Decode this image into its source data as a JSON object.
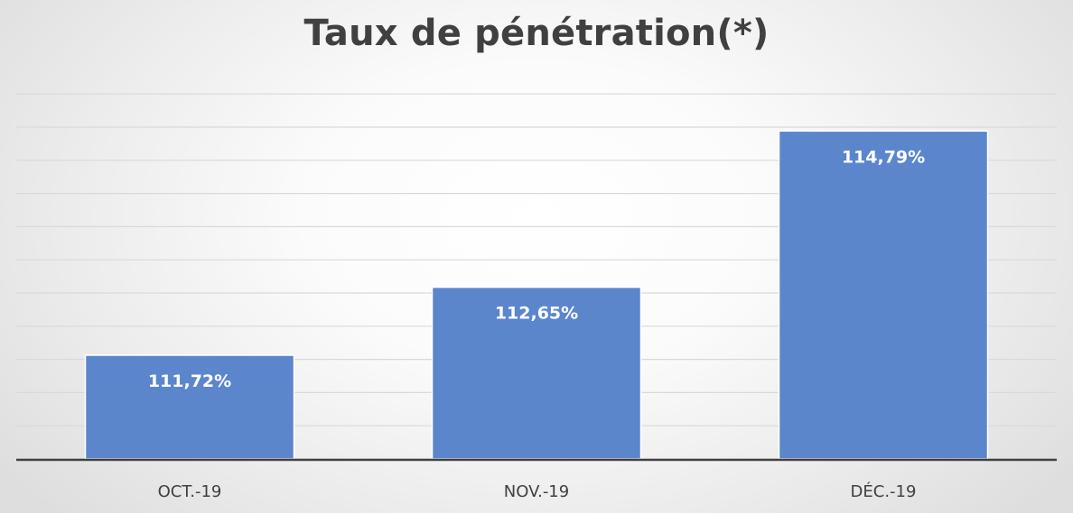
{
  "chart_data": {
    "type": "bar",
    "title": "Taux de pénétration(*)",
    "categories": [
      "OCT.-19",
      "NOV.-19",
      "DÉC.-19"
    ],
    "values": [
      111.72,
      112.65,
      114.79
    ],
    "value_labels": [
      "111,72%",
      "112,65%",
      "114,79%"
    ],
    "xlabel": "",
    "ylabel": "",
    "ylim": [
      110.3,
      115.3
    ],
    "grid": true,
    "legend": "none",
    "bar_color": "#5b86cc",
    "label_color": "#ffffff",
    "title_color": "#404040"
  }
}
